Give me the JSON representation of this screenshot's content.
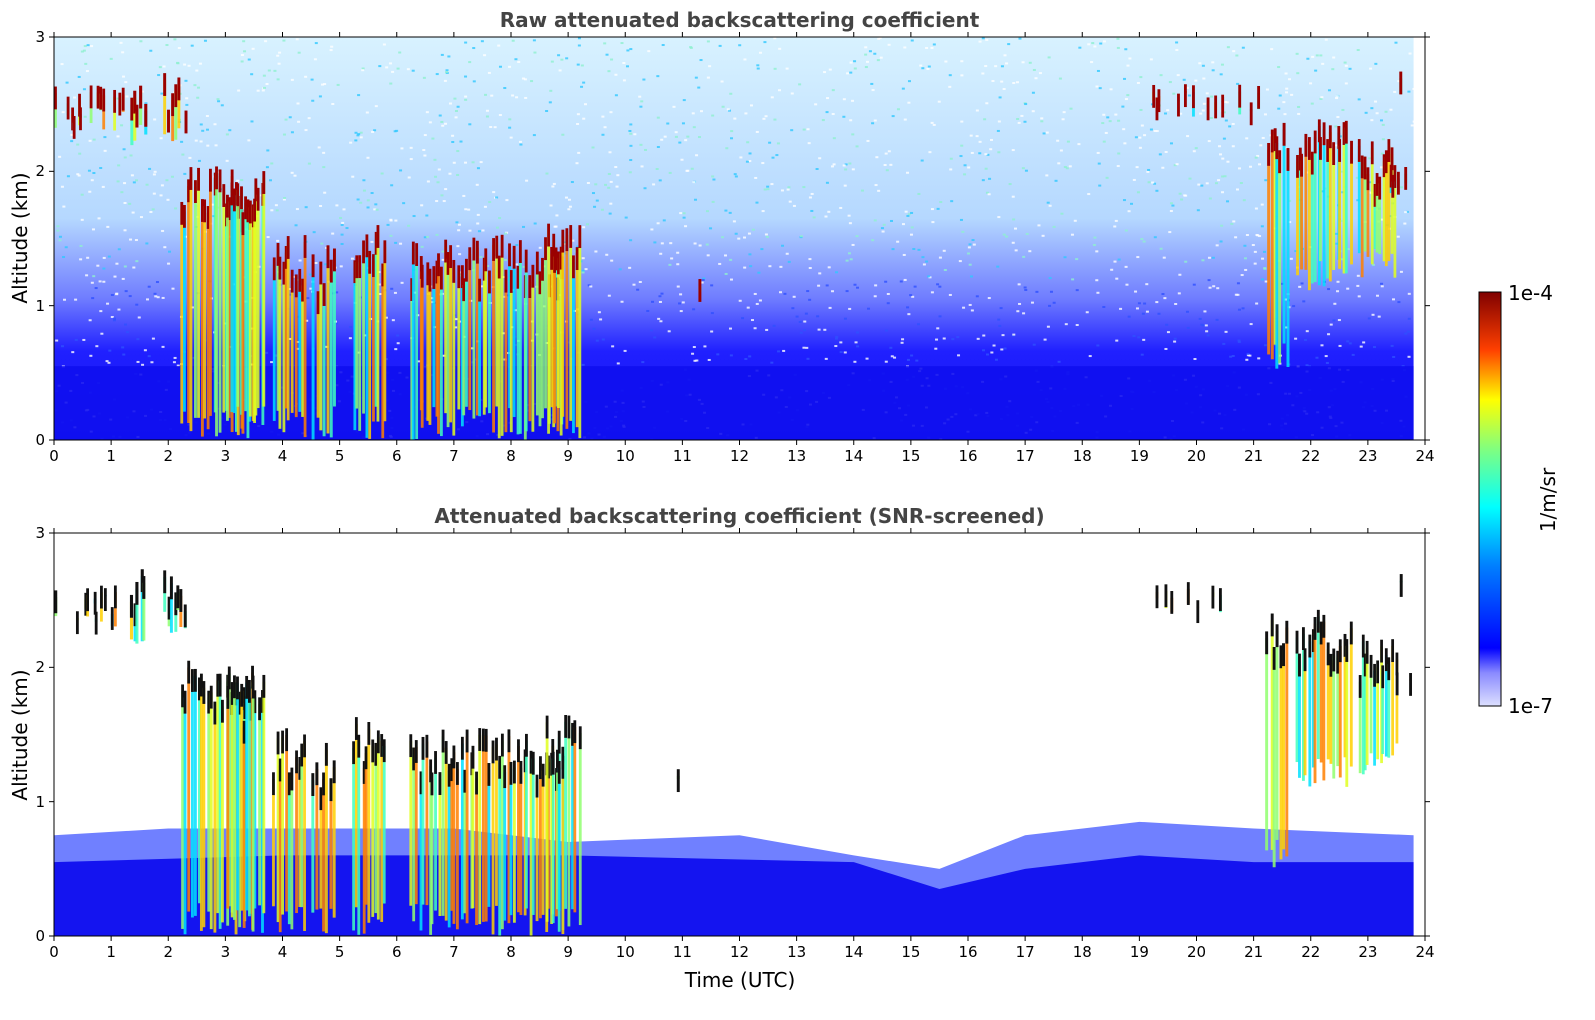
{
  "chart_data": [
    {
      "type": "heatmap",
      "title": "Raw attenuated backscattering coefficient",
      "xlabel": "",
      "ylabel": "Altitude (km)",
      "xlim": [
        0,
        24
      ],
      "ylim": [
        0,
        3
      ],
      "x_ticks": [
        "0",
        "1",
        "2",
        "3",
        "4",
        "5",
        "6",
        "7",
        "8",
        "9",
        "10",
        "11",
        "12",
        "13",
        "14",
        "15",
        "16",
        "17",
        "18",
        "19",
        "20",
        "21",
        "22",
        "23",
        "24"
      ],
      "y_ticks": [
        "0",
        "1",
        "2",
        "3"
      ],
      "screened": false
    },
    {
      "type": "heatmap",
      "title": "Attenuated backscattering coefficient (SNR-screened)",
      "xlabel": "Time (UTC)",
      "ylabel": "Altitude (km)",
      "xlim": [
        0,
        24
      ],
      "ylim": [
        0,
        3
      ],
      "x_ticks": [
        "0",
        "1",
        "2",
        "3",
        "4",
        "5",
        "6",
        "7",
        "8",
        "9",
        "10",
        "11",
        "12",
        "13",
        "14",
        "15",
        "16",
        "17",
        "18",
        "19",
        "20",
        "21",
        "22",
        "23",
        "24"
      ],
      "y_ticks": [
        "0",
        "1",
        "2",
        "3"
      ],
      "screened": true
    }
  ],
  "colorbar": {
    "label": "1/m/sr",
    "max_label": "1e-4",
    "min_label": "1e-7",
    "scale": "log",
    "range": [
      1e-07,
      0.0001
    ],
    "colormap": "jet"
  },
  "clouds": [
    {
      "t0": 0.0,
      "t1": 1.2,
      "base": 2.3,
      "top": 2.6
    },
    {
      "t0": 1.3,
      "t1": 1.6,
      "base": 2.1,
      "top": 2.7
    },
    {
      "t0": 1.9,
      "t1": 2.3,
      "base": 2.2,
      "top": 2.7
    },
    {
      "t0": 2.2,
      "t1": 3.7,
      "base": 0.0,
      "top": 2.0
    },
    {
      "t0": 3.0,
      "t1": 3.5,
      "base": 0.0,
      "top": 1.9
    },
    {
      "t0": 3.8,
      "t1": 4.4,
      "base": 0.0,
      "top": 1.5
    },
    {
      "t0": 4.5,
      "t1": 4.9,
      "base": 0.0,
      "top": 1.4
    },
    {
      "t0": 5.2,
      "t1": 5.8,
      "base": 0.0,
      "top": 1.6
    },
    {
      "t0": 6.2,
      "t1": 8.9,
      "base": 0.0,
      "top": 1.5
    },
    {
      "t0": 8.6,
      "t1": 9.2,
      "base": 0.0,
      "top": 1.6
    },
    {
      "t0": 10.9,
      "t1": 11.3,
      "base": 1.1,
      "top": 1.3
    },
    {
      "t0": 19.2,
      "t1": 21.3,
      "base": 2.4,
      "top": 2.6
    },
    {
      "t0": 21.2,
      "t1": 21.6,
      "base": 0.5,
      "top": 2.4
    },
    {
      "t0": 21.7,
      "t1": 22.7,
      "base": 1.1,
      "top": 2.4
    },
    {
      "t0": 22.8,
      "t1": 23.5,
      "base": 1.2,
      "top": 2.2
    },
    {
      "t0": 23.3,
      "t1": 23.8,
      "base": 1.8,
      "top": 2.0
    },
    {
      "t0": 23.4,
      "t1": 23.8,
      "base": 2.5,
      "top": 2.7
    }
  ]
}
